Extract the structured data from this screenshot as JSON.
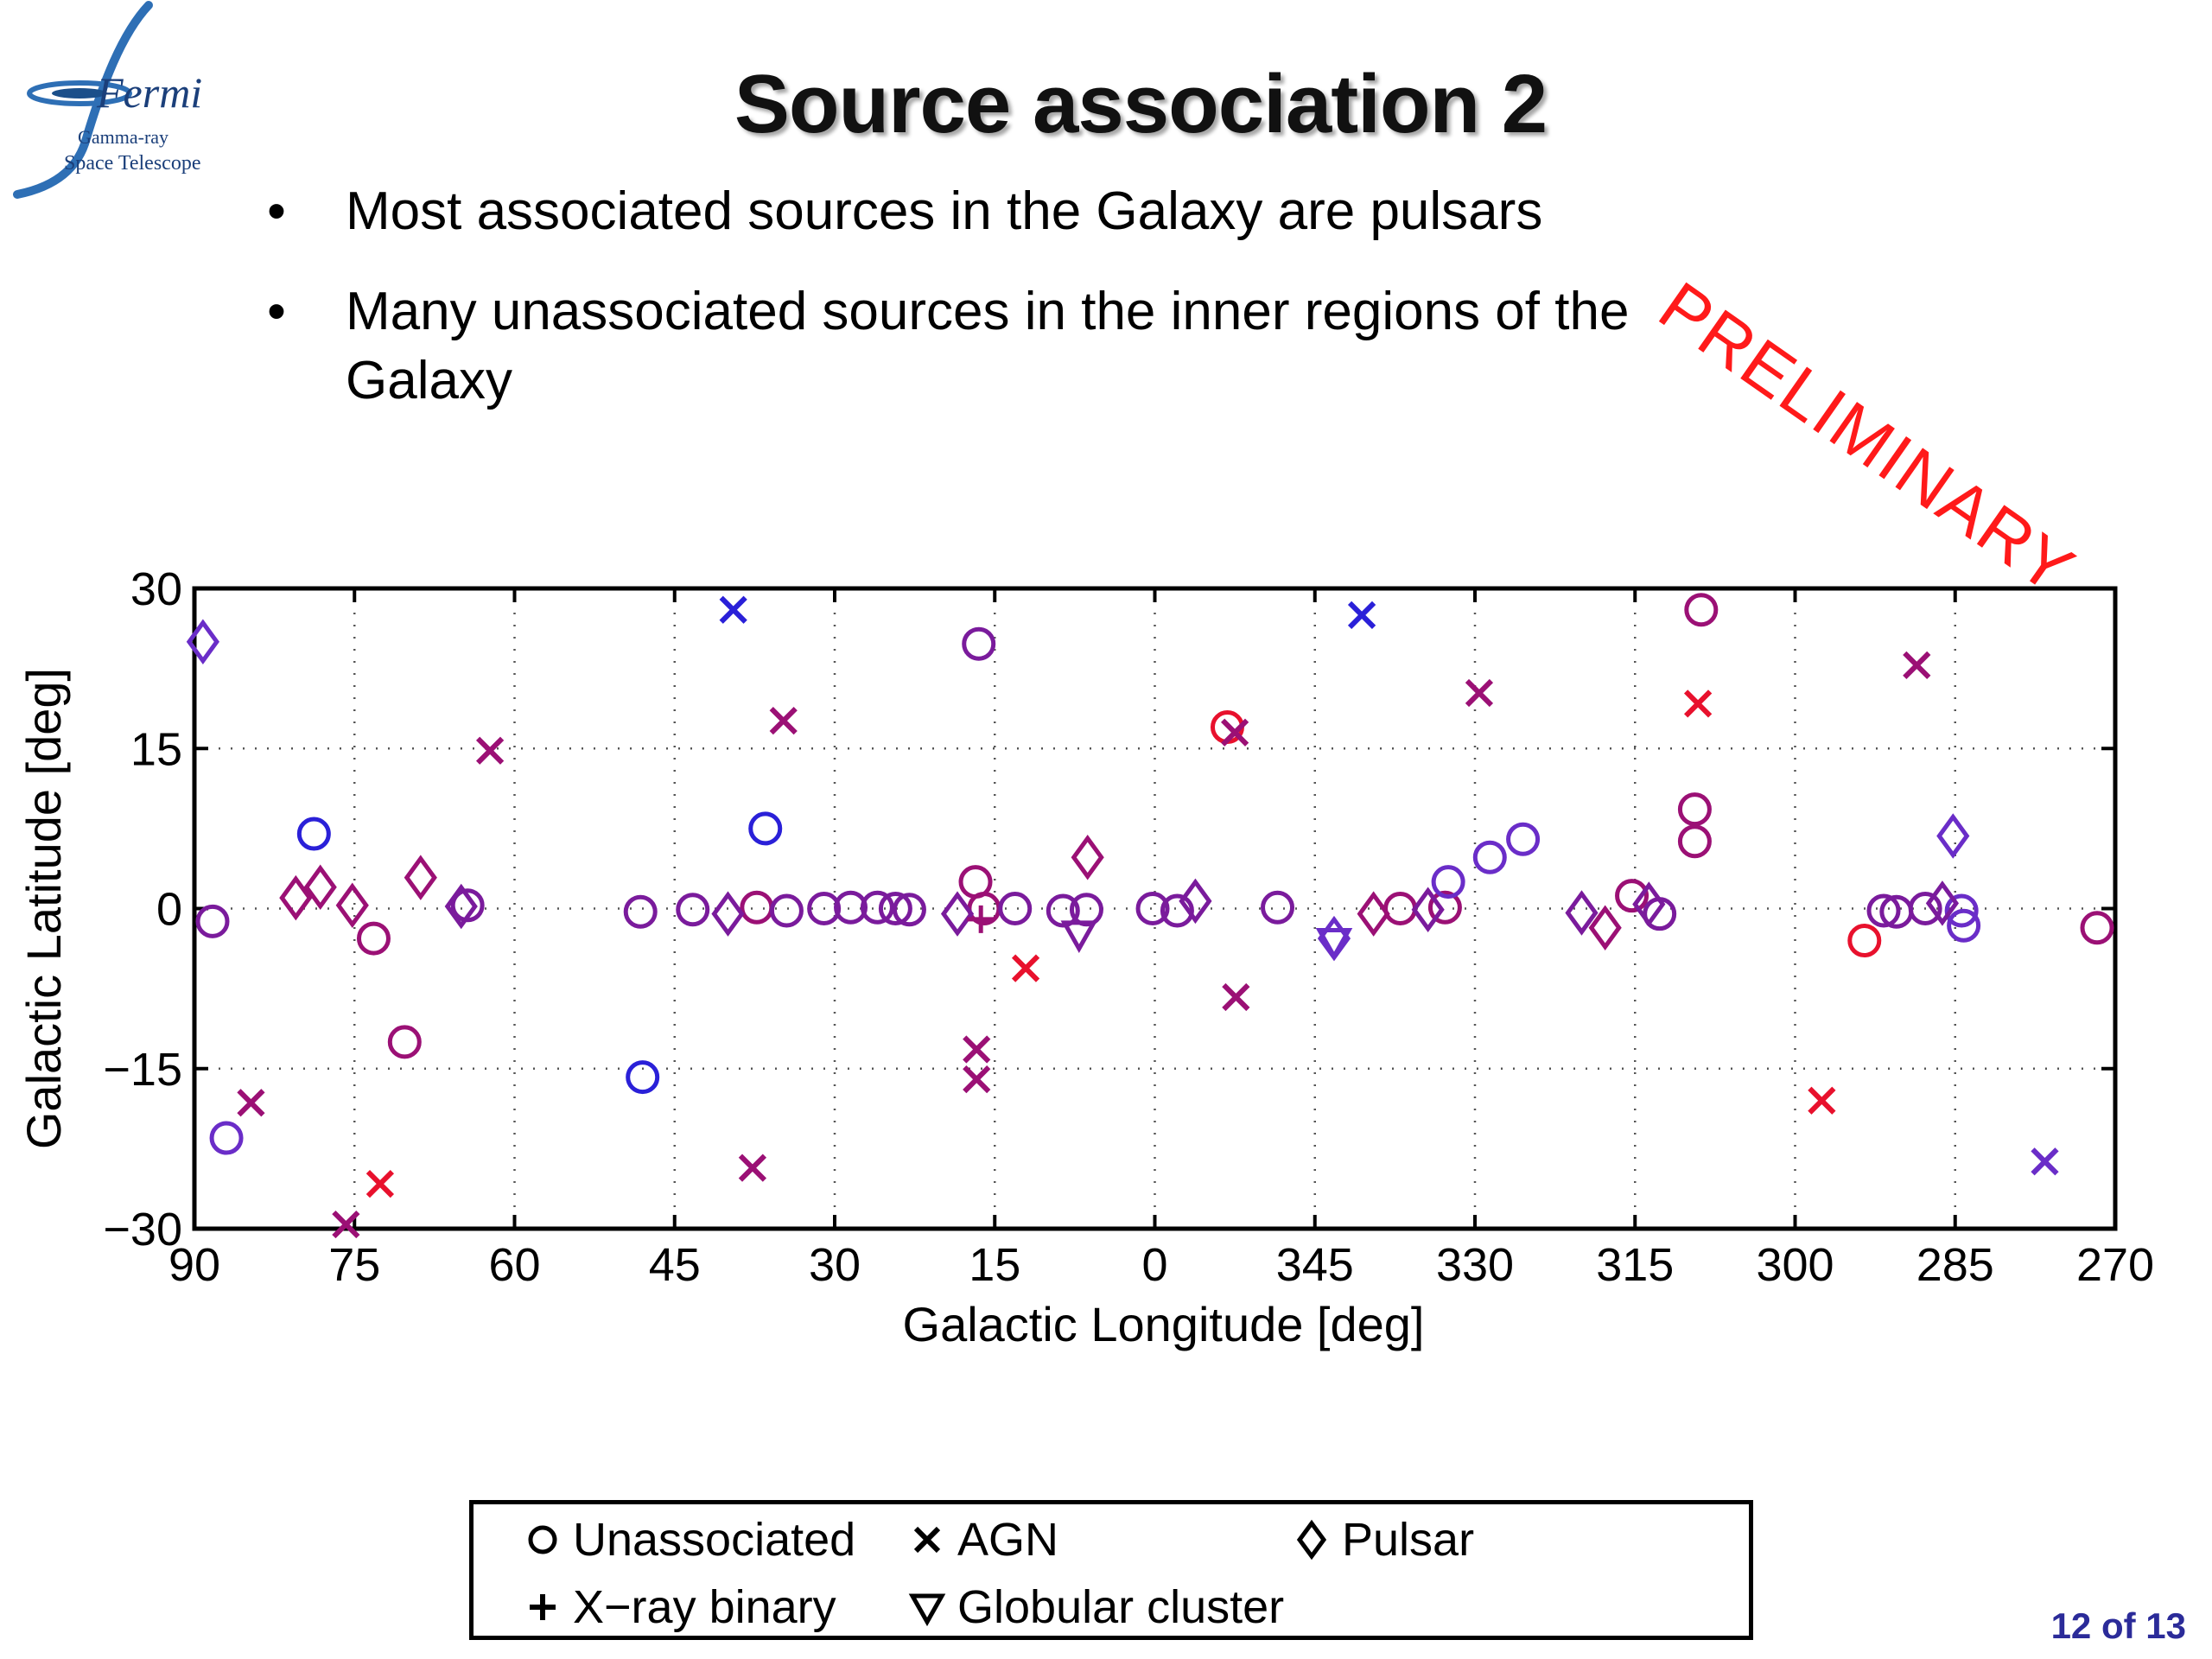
{
  "logo": {
    "name": "Fermi",
    "subtitle_line1": "Gamma-ray",
    "subtitle_line2": "Space Telescope"
  },
  "title": "Source association 2",
  "stamp": "PRELIMINARY",
  "bullets": [
    {
      "bullet": "•",
      "text": "Most associated sources in the Galaxy are pulsars"
    },
    {
      "bullet": "•",
      "text": "Many unassociated sources in the inner regions of the Galaxy"
    }
  ],
  "legend": {
    "unassociated": "Unassociated",
    "agn": "AGN",
    "pulsar": "Pulsar",
    "xray_binary": "X−ray binary",
    "globular_cluster": "Globular cluster"
  },
  "page_number": "12 of 13",
  "chart_data": {
    "type": "scatter",
    "xlabel": "Galactic Longitude [deg]",
    "ylabel": "Galactic Latitude [deg]",
    "x_ticks": [
      90,
      75,
      60,
      45,
      30,
      15,
      0,
      345,
      330,
      315,
      300,
      285,
      270
    ],
    "y_ticks": [
      30,
      15,
      0,
      -15,
      -30
    ],
    "y_tick_labels": [
      "30",
      "15",
      "0",
      "−15",
      "−30"
    ],
    "xlim": [
      90,
      -90
    ],
    "ylim": [
      -30,
      30
    ],
    "grid": true,
    "colors": {
      "red": "#e8112d",
      "magenta": "#9b1075",
      "purple": "#7a1b9c",
      "violet": "#6a2dc8",
      "blue": "#2a20d8"
    },
    "series": [
      {
        "name": "Unassociated",
        "marker": "circle",
        "points": [
          {
            "x": 88.3,
            "y": -1.2,
            "c": "purple"
          },
          {
            "x": 87,
            "y": -21.5,
            "c": "violet"
          },
          {
            "x": 78.8,
            "y": 7,
            "c": "blue"
          },
          {
            "x": 73.2,
            "y": -2.8,
            "c": "magenta"
          },
          {
            "x": 70.3,
            "y": -12.5,
            "c": "magenta"
          },
          {
            "x": 64.4,
            "y": 0.3,
            "c": "purple"
          },
          {
            "x": 48.2,
            "y": -0.3,
            "c": "purple"
          },
          {
            "x": 48.0,
            "y": -15.8,
            "c": "blue"
          },
          {
            "x": 43.3,
            "y": -0.1,
            "c": "purple"
          },
          {
            "x": 37.3,
            "y": 0.1,
            "c": "magenta"
          },
          {
            "x": 36.5,
            "y": 7.5,
            "c": "blue"
          },
          {
            "x": 34.5,
            "y": -0.2,
            "c": "purple"
          },
          {
            "x": 31.0,
            "y": 0.0,
            "c": "purple"
          },
          {
            "x": 28.5,
            "y": 0.1,
            "c": "purple"
          },
          {
            "x": 26.0,
            "y": 0.1,
            "c": "purple"
          },
          {
            "x": 24.3,
            "y": 0.0,
            "c": "purple"
          },
          {
            "x": 23.0,
            "y": -0.1,
            "c": "purple"
          },
          {
            "x": 16.8,
            "y": 2.5,
            "c": "magenta"
          },
          {
            "x": 16.5,
            "y": 24.8,
            "c": "purple"
          },
          {
            "x": 16.0,
            "y": 0.0,
            "c": "magenta"
          },
          {
            "x": 13.1,
            "y": 0.0,
            "c": "purple"
          },
          {
            "x": 8.6,
            "y": -0.2,
            "c": "purple"
          },
          {
            "x": 6.4,
            "y": -0.1,
            "c": "purple"
          },
          {
            "x": 0.2,
            "y": 0.0,
            "c": "purple"
          },
          {
            "x": -2.1,
            "y": -0.2,
            "c": "purple"
          },
          {
            "x": -6.8,
            "y": 17,
            "c": "red"
          },
          {
            "x": -11.5,
            "y": 0.1,
            "c": "purple"
          },
          {
            "x": -23.0,
            "y": 0.0,
            "c": "magenta"
          },
          {
            "x": -27.2,
            "y": 0.1,
            "c": "magenta"
          },
          {
            "x": -27.5,
            "y": 2.5,
            "c": "violet"
          },
          {
            "x": -31.4,
            "y": 4.8,
            "c": "violet"
          },
          {
            "x": -34.5,
            "y": 6.5,
            "c": "violet"
          },
          {
            "x": -44.7,
            "y": 1.2,
            "c": "magenta"
          },
          {
            "x": -47.3,
            "y": -0.5,
            "c": "purple"
          },
          {
            "x": -51.2,
            "y": 28,
            "c": "magenta"
          },
          {
            "x": -50.6,
            "y": 9.3,
            "c": "magenta"
          },
          {
            "x": -50.6,
            "y": 6.3,
            "c": "magenta"
          },
          {
            "x": -66.5,
            "y": -3.0,
            "c": "red"
          },
          {
            "x": -68.3,
            "y": -0.2,
            "c": "purple"
          },
          {
            "x": -69.5,
            "y": -0.3,
            "c": "purple"
          },
          {
            "x": -72.2,
            "y": 0.0,
            "c": "purple"
          },
          {
            "x": -75.6,
            "y": -0.2,
            "c": "violet"
          },
          {
            "x": -75.8,
            "y": -1.6,
            "c": "violet"
          },
          {
            "x": -88.3,
            "y": -1.8,
            "c": "magenta"
          }
        ]
      },
      {
        "name": "AGN",
        "marker": "x",
        "points": [
          {
            "x": 84.7,
            "y": -18.2,
            "c": "magenta"
          },
          {
            "x": 75.8,
            "y": -29.6,
            "c": "magenta"
          },
          {
            "x": 72.6,
            "y": -25.8,
            "c": "red"
          },
          {
            "x": 62.3,
            "y": 14.8,
            "c": "magenta"
          },
          {
            "x": 39.5,
            "y": 28.0,
            "c": "blue"
          },
          {
            "x": 37.7,
            "y": -24.3,
            "c": "magenta"
          },
          {
            "x": 34.8,
            "y": 17.6,
            "c": "magenta"
          },
          {
            "x": 16.7,
            "y": -13.2,
            "c": "magenta"
          },
          {
            "x": 16.7,
            "y": -16.0,
            "c": "magenta"
          },
          {
            "x": 12.1,
            "y": -5.6,
            "c": "red"
          },
          {
            "x": -7.5,
            "y": 16.5,
            "c": "magenta"
          },
          {
            "x": -7.6,
            "y": -8.3,
            "c": "magenta"
          },
          {
            "x": -19.4,
            "y": 27.5,
            "c": "blue"
          },
          {
            "x": -30.4,
            "y": 20.2,
            "c": "magenta"
          },
          {
            "x": -50.9,
            "y": 19.2,
            "c": "red"
          },
          {
            "x": -62.5,
            "y": -18.0,
            "c": "red"
          },
          {
            "x": -71.4,
            "y": 22.8,
            "c": "magenta"
          },
          {
            "x": -83.4,
            "y": -23.7,
            "c": "violet"
          }
        ]
      },
      {
        "name": "Pulsar",
        "marker": "diamond",
        "points": [
          {
            "x": 89.2,
            "y": 25.0,
            "c": "violet"
          },
          {
            "x": 80.5,
            "y": 1.0,
            "c": "magenta"
          },
          {
            "x": 78.2,
            "y": 2.0,
            "c": "magenta"
          },
          {
            "x": 75.2,
            "y": 0.3,
            "c": "magenta"
          },
          {
            "x": 68.8,
            "y": 2.9,
            "c": "magenta"
          },
          {
            "x": 65.0,
            "y": 0.2,
            "c": "purple"
          },
          {
            "x": 40.0,
            "y": -0.5,
            "c": "purple"
          },
          {
            "x": 18.5,
            "y": -0.5,
            "c": "purple"
          },
          {
            "x": 6.3,
            "y": 4.8,
            "c": "magenta"
          },
          {
            "x": -3.8,
            "y": 0.7,
            "c": "purple"
          },
          {
            "x": -16.8,
            "y": -2.8,
            "c": "violet"
          },
          {
            "x": -20.5,
            "y": -0.5,
            "c": "magenta"
          },
          {
            "x": -25.6,
            "y": -0.1,
            "c": "purple"
          },
          {
            "x": -40.0,
            "y": -0.4,
            "c": "purple"
          },
          {
            "x": -42.2,
            "y": -1.8,
            "c": "magenta"
          },
          {
            "x": -46.3,
            "y": 0.4,
            "c": "purple"
          },
          {
            "x": -73.8,
            "y": 0.5,
            "c": "purple"
          },
          {
            "x": -74.8,
            "y": 6.8,
            "c": "violet"
          }
        ]
      },
      {
        "name": "X-ray binary",
        "marker": "plus",
        "points": [
          {
            "x": 16.3,
            "y": -1.0,
            "c": "magenta"
          }
        ]
      },
      {
        "name": "Globular cluster",
        "marker": "triangle",
        "points": [
          {
            "x": 7.1,
            "y": -2.3,
            "c": "purple"
          },
          {
            "x": -16.8,
            "y": -3.0,
            "c": "violet"
          }
        ]
      }
    ]
  }
}
